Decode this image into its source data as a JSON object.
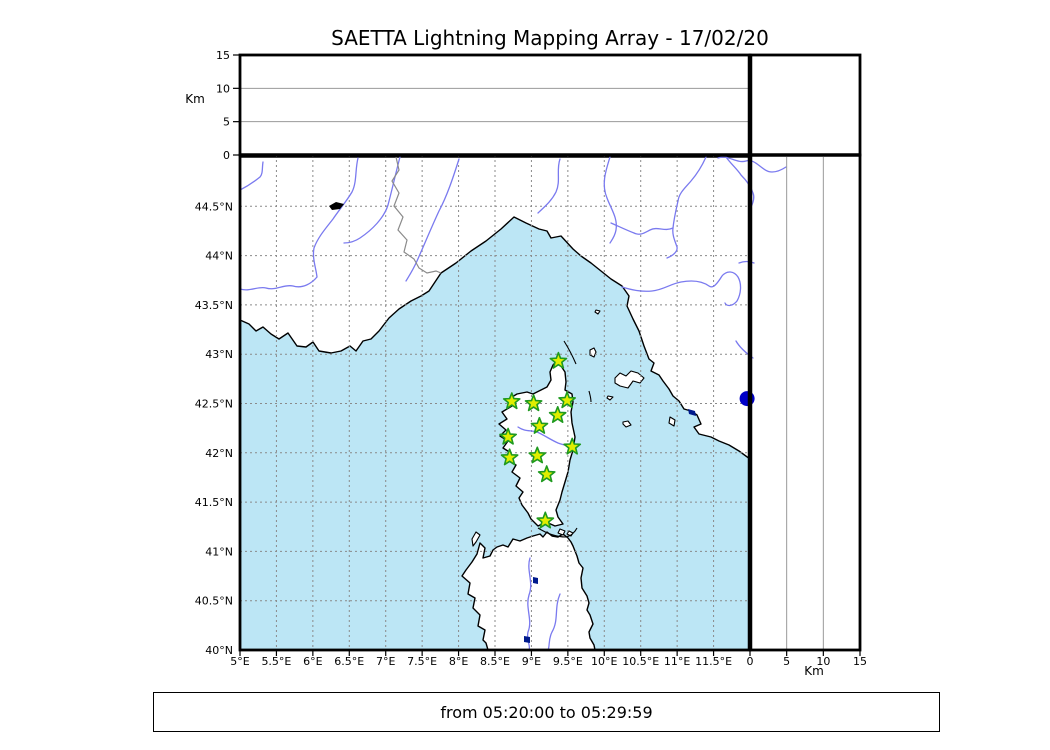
{
  "title": "SAETTA Lightning Mapping Array - 17/02/20",
  "footer": {
    "time_range": "from 05:20:00 to 05:29:59"
  },
  "altitude_axes": {
    "unit_label": "Km",
    "top_tick_labels": [
      "0",
      "5",
      "10",
      "15"
    ],
    "right_tick_labels": [
      "0",
      "5",
      "10",
      "15"
    ],
    "tick_values_km": [
      0,
      5,
      10,
      15
    ],
    "range_km": [
      0,
      15
    ],
    "gridline_km": [
      5,
      10
    ]
  },
  "map_axes": {
    "lon_tick_labels": [
      "5°E",
      "5.5°E",
      "6°E",
      "6.5°E",
      "7°E",
      "7.5°E",
      "8°E",
      "8.5°E",
      "9°E",
      "9.5°E",
      "10°E",
      "10.5°E",
      "11°E",
      "11.5°E"
    ],
    "lon_tick_values": [
      5,
      5.5,
      6,
      6.5,
      7,
      7.5,
      8,
      8.5,
      9,
      9.5,
      10,
      10.5,
      11,
      11.5
    ],
    "lat_tick_labels": [
      "44.5°N",
      "44°N",
      "43.5°N",
      "43°N",
      "42.5°N",
      "42°N",
      "41.5°N",
      "41°N",
      "40.5°N",
      "40°N"
    ],
    "lat_tick_values": [
      44.5,
      44,
      43.5,
      43,
      42.5,
      42,
      41.5,
      41,
      40.5,
      40
    ],
    "lon_range_deg": [
      5,
      12
    ],
    "lat_range_deg": [
      40,
      45.02
    ],
    "grid_step_deg": 0.5
  },
  "stations": [
    {
      "lon": 9.37,
      "lat": 42.93
    },
    {
      "lon": 8.73,
      "lat": 42.52
    },
    {
      "lon": 9.03,
      "lat": 42.5
    },
    {
      "lon": 9.49,
      "lat": 42.53
    },
    {
      "lon": 9.36,
      "lat": 42.38
    },
    {
      "lon": 9.11,
      "lat": 42.27
    },
    {
      "lon": 8.68,
      "lat": 42.16
    },
    {
      "lon": 9.56,
      "lat": 42.06
    },
    {
      "lon": 8.7,
      "lat": 41.95
    },
    {
      "lon": 9.08,
      "lat": 41.97
    },
    {
      "lon": 9.21,
      "lat": 41.78
    },
    {
      "lon": 9.19,
      "lat": 41.31
    }
  ],
  "sources": [
    {
      "lon": 11.96,
      "lat": 42.55,
      "alt_km": 0
    }
  ],
  "colors": {
    "sea": "#bce6f5",
    "land": "#ffffff",
    "coastline": "#000000",
    "river": "#7a7aef",
    "country_border": "#8a8a8a",
    "grid": "#8a8a8a",
    "station_fill": "#e0ee00",
    "station_stroke": "#1f9a1f",
    "source": "#0000c8",
    "lake": "#001a8c"
  }
}
